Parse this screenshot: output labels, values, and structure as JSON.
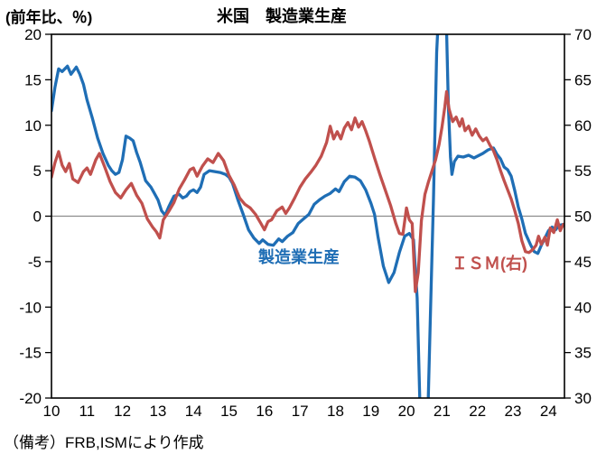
{
  "header": {
    "axis_unit_label": "(前年比、％)",
    "title": "米国　製造業生産"
  },
  "note": "（備考）FRB,ISMにより作成",
  "colors": {
    "manufacturing_line": "#1f6eb5",
    "ism_line": "#c0504d",
    "zero_line": "#8c8c8c",
    "axis": "#000000"
  },
  "chart_data": {
    "type": "line",
    "title": "米国　製造業生産",
    "subtitle_unit": "(前年比、％)",
    "legend_position": "inside-plot",
    "grid": "zero-line-only",
    "x_axis": {
      "min": 2010,
      "max": 2024.45,
      "ticks": [
        [
          2010,
          "10"
        ],
        [
          2011,
          "11"
        ],
        [
          2012,
          "12"
        ],
        [
          2013,
          "13"
        ],
        [
          2014,
          "14"
        ],
        [
          2015,
          "15"
        ],
        [
          2016,
          "16"
        ],
        [
          2017,
          "17"
        ],
        [
          2018,
          "18"
        ],
        [
          2019,
          "19"
        ],
        [
          2020,
          "20"
        ],
        [
          2021,
          "21"
        ],
        [
          2022,
          "22"
        ],
        [
          2023,
          "23"
        ],
        [
          2024,
          "24"
        ]
      ]
    },
    "y_left": {
      "label": "(前年比、％)",
      "min": -20,
      "max": 20,
      "ticks": [
        20,
        15,
        10,
        5,
        0,
        -5,
        -10,
        -15,
        -20
      ]
    },
    "y_right": {
      "label": "ISM",
      "min": 30,
      "max": 70,
      "ticks": [
        70,
        65,
        60,
        55,
        50,
        45,
        40,
        35,
        30
      ]
    },
    "zero_line_value_left": 0,
    "series": [
      {
        "name": "製造業生産",
        "label_text": "製造業生産",
        "axis": "left",
        "color": "#1f6eb5",
        "points": [
          [
            2010.0,
            11.6
          ],
          [
            2010.1,
            14.2
          ],
          [
            2010.2,
            16.2
          ],
          [
            2010.3,
            15.9
          ],
          [
            2010.45,
            16.5
          ],
          [
            2010.55,
            15.6
          ],
          [
            2010.7,
            16.4
          ],
          [
            2010.8,
            15.6
          ],
          [
            2010.9,
            14.5
          ],
          [
            2011.0,
            12.8
          ],
          [
            2011.15,
            10.8
          ],
          [
            2011.3,
            8.6
          ],
          [
            2011.45,
            6.9
          ],
          [
            2011.6,
            5.6
          ],
          [
            2011.7,
            5.0
          ],
          [
            2011.8,
            4.6
          ],
          [
            2011.9,
            4.8
          ],
          [
            2012.0,
            6.2
          ],
          [
            2012.1,
            8.8
          ],
          [
            2012.2,
            8.6
          ],
          [
            2012.3,
            8.3
          ],
          [
            2012.4,
            7.0
          ],
          [
            2012.5,
            5.9
          ],
          [
            2012.65,
            3.9
          ],
          [
            2012.8,
            3.2
          ],
          [
            2012.9,
            2.5
          ],
          [
            2013.0,
            1.8
          ],
          [
            2013.1,
            0.6
          ],
          [
            2013.2,
            0.1
          ],
          [
            2013.3,
            1.0
          ],
          [
            2013.45,
            2.2
          ],
          [
            2013.6,
            2.4
          ],
          [
            2013.7,
            2.0
          ],
          [
            2013.8,
            2.2
          ],
          [
            2013.9,
            2.7
          ],
          [
            2014.0,
            2.9
          ],
          [
            2014.1,
            2.6
          ],
          [
            2014.2,
            3.2
          ],
          [
            2014.3,
            4.6
          ],
          [
            2014.45,
            5.0
          ],
          [
            2014.6,
            4.9
          ],
          [
            2014.75,
            4.8
          ],
          [
            2014.9,
            4.6
          ],
          [
            2015.0,
            4.3
          ],
          [
            2015.1,
            3.6
          ],
          [
            2015.25,
            1.8
          ],
          [
            2015.4,
            0.2
          ],
          [
            2015.55,
            -1.5
          ],
          [
            2015.7,
            -2.4
          ],
          [
            2015.85,
            -3.0
          ],
          [
            2015.95,
            -2.6
          ],
          [
            2016.1,
            -3.1
          ],
          [
            2016.25,
            -3.2
          ],
          [
            2016.4,
            -2.5
          ],
          [
            2016.5,
            -2.8
          ],
          [
            2016.65,
            -2.2
          ],
          [
            2016.8,
            -1.8
          ],
          [
            2016.95,
            -0.8
          ],
          [
            2017.1,
            -0.3
          ],
          [
            2017.25,
            0.2
          ],
          [
            2017.4,
            1.3
          ],
          [
            2017.55,
            1.8
          ],
          [
            2017.7,
            2.2
          ],
          [
            2017.85,
            2.5
          ],
          [
            2018.0,
            3.0
          ],
          [
            2018.1,
            2.7
          ],
          [
            2018.25,
            3.8
          ],
          [
            2018.4,
            4.4
          ],
          [
            2018.55,
            4.3
          ],
          [
            2018.7,
            3.9
          ],
          [
            2018.85,
            2.9
          ],
          [
            2019.0,
            1.4
          ],
          [
            2019.1,
            0.2
          ],
          [
            2019.2,
            -2.3
          ],
          [
            2019.35,
            -5.5
          ],
          [
            2019.5,
            -7.3
          ],
          [
            2019.65,
            -6.2
          ],
          [
            2019.8,
            -4.0
          ],
          [
            2019.95,
            -2.2
          ],
          [
            2020.08,
            -1.9
          ],
          [
            2020.2,
            -2.6
          ],
          [
            2020.3,
            -9.0
          ],
          [
            2020.4,
            -24.0
          ],
          [
            2020.5,
            -28.0
          ],
          [
            2020.6,
            -22.0
          ],
          [
            2020.68,
            -10.0
          ],
          [
            2020.76,
            2.0
          ],
          [
            2020.85,
            18.0
          ],
          [
            2020.95,
            26.0
          ],
          [
            2021.05,
            26.0
          ],
          [
            2021.12,
            22.0
          ],
          [
            2021.18,
            12.0
          ],
          [
            2021.24,
            6.5
          ],
          [
            2021.28,
            4.6
          ],
          [
            2021.35,
            6.0
          ],
          [
            2021.45,
            6.6
          ],
          [
            2021.6,
            6.5
          ],
          [
            2021.75,
            6.7
          ],
          [
            2021.9,
            6.4
          ],
          [
            2022.0,
            6.6
          ],
          [
            2022.15,
            6.9
          ],
          [
            2022.3,
            7.3
          ],
          [
            2022.45,
            7.5
          ],
          [
            2022.55,
            6.8
          ],
          [
            2022.65,
            6.3
          ],
          [
            2022.75,
            5.4
          ],
          [
            2022.85,
            5.1
          ],
          [
            2022.95,
            4.4
          ],
          [
            2023.05,
            2.8
          ],
          [
            2023.15,
            1.0
          ],
          [
            2023.25,
            -0.3
          ],
          [
            2023.35,
            -1.9
          ],
          [
            2023.5,
            -3.2
          ],
          [
            2023.6,
            -3.9
          ],
          [
            2023.7,
            -4.1
          ],
          [
            2023.8,
            -3.2
          ],
          [
            2023.9,
            -2.4
          ],
          [
            2024.0,
            -1.6
          ],
          [
            2024.1,
            -1.2
          ],
          [
            2024.2,
            -1.5
          ],
          [
            2024.3,
            -1.0
          ],
          [
            2024.42,
            -0.9
          ]
        ]
      },
      {
        "name": "ＩＳＭ(右)",
        "label_text": "ＩＳＭ(右)",
        "axis": "right",
        "color": "#c0504d",
        "points": [
          [
            2010.0,
            54.3
          ],
          [
            2010.1,
            55.9
          ],
          [
            2010.2,
            57.1
          ],
          [
            2010.3,
            55.6
          ],
          [
            2010.4,
            54.9
          ],
          [
            2010.5,
            55.8
          ],
          [
            2010.6,
            54.1
          ],
          [
            2010.75,
            53.7
          ],
          [
            2010.9,
            54.9
          ],
          [
            2011.0,
            55.3
          ],
          [
            2011.1,
            54.6
          ],
          [
            2011.25,
            56.2
          ],
          [
            2011.35,
            56.9
          ],
          [
            2011.5,
            55.4
          ],
          [
            2011.65,
            53.8
          ],
          [
            2011.8,
            52.6
          ],
          [
            2011.95,
            52.0
          ],
          [
            2012.1,
            52.9
          ],
          [
            2012.25,
            53.6
          ],
          [
            2012.4,
            52.3
          ],
          [
            2012.55,
            51.4
          ],
          [
            2012.7,
            49.7
          ],
          [
            2012.85,
            48.8
          ],
          [
            2012.95,
            48.3
          ],
          [
            2013.05,
            47.6
          ],
          [
            2013.15,
            49.6
          ],
          [
            2013.3,
            50.5
          ],
          [
            2013.45,
            51.5
          ],
          [
            2013.6,
            53.0
          ],
          [
            2013.75,
            54.0
          ],
          [
            2013.9,
            55.1
          ],
          [
            2014.0,
            55.3
          ],
          [
            2014.1,
            54.4
          ],
          [
            2014.25,
            55.5
          ],
          [
            2014.4,
            56.3
          ],
          [
            2014.55,
            55.9
          ],
          [
            2014.7,
            56.9
          ],
          [
            2014.85,
            56.1
          ],
          [
            2015.0,
            54.5
          ],
          [
            2015.15,
            53.4
          ],
          [
            2015.3,
            52.0
          ],
          [
            2015.45,
            51.3
          ],
          [
            2015.6,
            50.9
          ],
          [
            2015.75,
            50.2
          ],
          [
            2015.9,
            49.2
          ],
          [
            2016.0,
            48.5
          ],
          [
            2016.1,
            49.4
          ],
          [
            2016.2,
            49.6
          ],
          [
            2016.35,
            50.6
          ],
          [
            2016.5,
            51.0
          ],
          [
            2016.6,
            50.3
          ],
          [
            2016.7,
            50.9
          ],
          [
            2016.85,
            52.0
          ],
          [
            2017.0,
            53.2
          ],
          [
            2017.15,
            54.1
          ],
          [
            2017.3,
            54.8
          ],
          [
            2017.45,
            55.6
          ],
          [
            2017.6,
            56.6
          ],
          [
            2017.75,
            58.1
          ],
          [
            2017.85,
            59.9
          ],
          [
            2017.95,
            58.5
          ],
          [
            2018.05,
            59.3
          ],
          [
            2018.15,
            58.5
          ],
          [
            2018.25,
            59.7
          ],
          [
            2018.35,
            60.3
          ],
          [
            2018.45,
            59.5
          ],
          [
            2018.55,
            60.8
          ],
          [
            2018.65,
            59.8
          ],
          [
            2018.75,
            60.4
          ],
          [
            2018.85,
            59.4
          ],
          [
            2018.95,
            58.3
          ],
          [
            2019.1,
            56.4
          ],
          [
            2019.25,
            54.6
          ],
          [
            2019.4,
            52.9
          ],
          [
            2019.55,
            51.2
          ],
          [
            2019.7,
            49.2
          ],
          [
            2019.8,
            48.1
          ],
          [
            2019.9,
            48.0
          ],
          [
            2020.0,
            50.9
          ],
          [
            2020.08,
            49.6
          ],
          [
            2020.16,
            49.2
          ],
          [
            2020.25,
            41.7
          ],
          [
            2020.33,
            43.8
          ],
          [
            2020.42,
            49.5
          ],
          [
            2020.52,
            52.4
          ],
          [
            2020.62,
            53.8
          ],
          [
            2020.72,
            55.0
          ],
          [
            2020.82,
            56.2
          ],
          [
            2020.92,
            57.9
          ],
          [
            2021.0,
            59.8
          ],
          [
            2021.08,
            62.0
          ],
          [
            2021.13,
            63.7
          ],
          [
            2021.2,
            61.8
          ],
          [
            2021.3,
            60.4
          ],
          [
            2021.4,
            60.9
          ],
          [
            2021.5,
            59.9
          ],
          [
            2021.57,
            60.7
          ],
          [
            2021.65,
            59.4
          ],
          [
            2021.75,
            59.9
          ],
          [
            2021.85,
            58.9
          ],
          [
            2021.95,
            59.6
          ],
          [
            2022.05,
            58.8
          ],
          [
            2022.15,
            58.3
          ],
          [
            2022.25,
            58.6
          ],
          [
            2022.35,
            57.8
          ],
          [
            2022.45,
            57.2
          ],
          [
            2022.55,
            56.2
          ],
          [
            2022.65,
            55.0
          ],
          [
            2022.75,
            53.9
          ],
          [
            2022.85,
            52.9
          ],
          [
            2022.95,
            51.9
          ],
          [
            2023.05,
            50.6
          ],
          [
            2023.15,
            49.2
          ],
          [
            2023.25,
            47.3
          ],
          [
            2023.35,
            46.1
          ],
          [
            2023.45,
            46.0
          ],
          [
            2023.55,
            46.3
          ],
          [
            2023.65,
            46.8
          ],
          [
            2023.72,
            47.8
          ],
          [
            2023.8,
            46.9
          ],
          [
            2023.9,
            47.7
          ],
          [
            2023.97,
            46.8
          ],
          [
            2024.05,
            48.7
          ],
          [
            2024.15,
            48.2
          ],
          [
            2024.25,
            49.6
          ],
          [
            2024.33,
            48.4
          ],
          [
            2024.42,
            49.1
          ]
        ]
      }
    ]
  }
}
